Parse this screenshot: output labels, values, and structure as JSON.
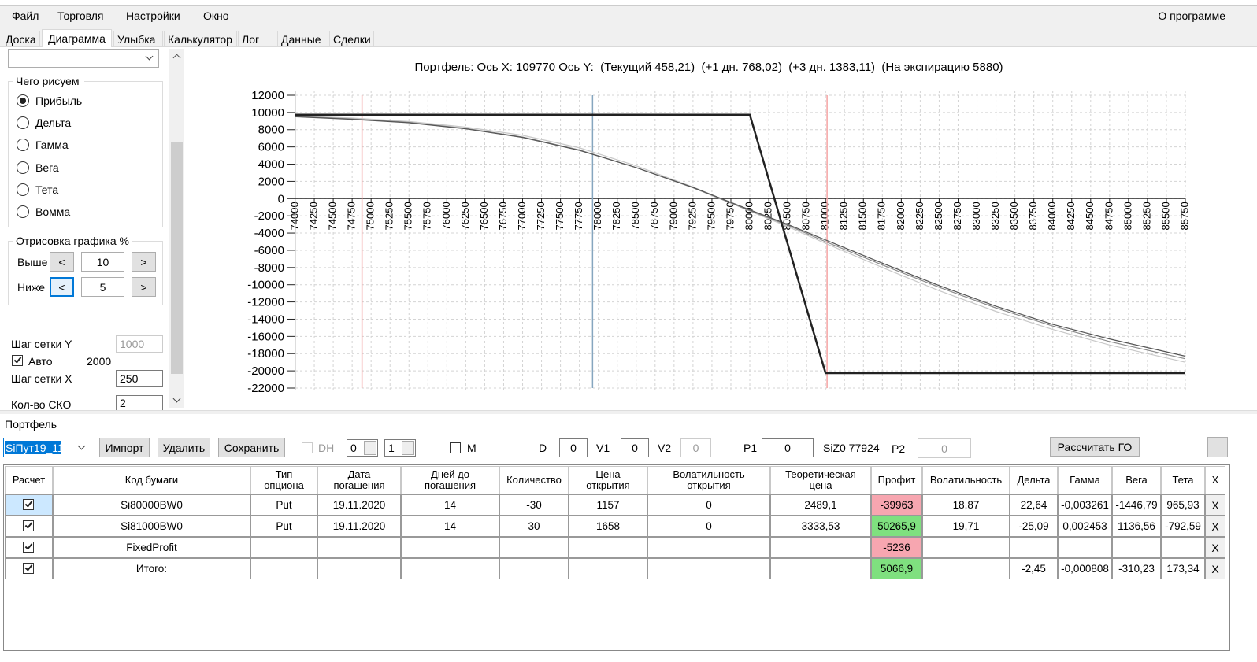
{
  "menu": {
    "items": [
      "Файл",
      "Торговля",
      "Настройки",
      "Окно"
    ],
    "about": "О программе"
  },
  "tabs": {
    "items": [
      "Доска",
      "Диаграмма",
      "Улыбка",
      "Калькулятор",
      "Лог",
      "Данные",
      "Сделки"
    ],
    "active": 1
  },
  "settings": {
    "draw_group": "Чего рисуем",
    "draw_options": [
      "Прибыль",
      "Дельта",
      "Гамма",
      "Вега",
      "Тета",
      "Вомма"
    ],
    "draw_selected": 0,
    "range_group": "Отрисовка графика %",
    "above_label": "Выше",
    "above": 10,
    "below_label": "Ниже",
    "below": 5,
    "dec": "<",
    "inc": ">",
    "grid_y_label": "Шаг сетки Y",
    "grid_y": 1000,
    "auto_label": "Авто",
    "auto_checked": true,
    "auto_value": 2000,
    "grid_x_label": "Шаг сетки X",
    "grid_x": 250,
    "sd_label": "Кол-во СКО",
    "sd": 2
  },
  "chart_data": {
    "type": "line",
    "title": "Портфель: Ось X: 109770 Ось Y:  (Текущий 458,21)  (+1 дн. 768,02)  (+3 дн. 1383,11)  (На экспирацию 5880)",
    "x": [
      74000,
      74750,
      75500,
      76250,
      77000,
      77750,
      78500,
      79250,
      80000,
      80500,
      81000,
      81750,
      82500,
      83250,
      84000,
      84750,
      85750
    ],
    "series": [
      {
        "color": "#c8c8c8",
        "width": 1.2,
        "values": [
          9600,
          9350,
          8950,
          8300,
          7350,
          5900,
          3800,
          1350,
          -1450,
          -3250,
          -5200,
          -8000,
          -10700,
          -13100,
          -15200,
          -17000,
          -19000
        ]
      },
      {
        "color": "#8a8a8a",
        "width": 1.2,
        "values": [
          9550,
          9250,
          8850,
          8150,
          7150,
          5650,
          3600,
          1250,
          -1400,
          -3100,
          -5000,
          -7700,
          -10300,
          -12700,
          -14800,
          -16600,
          -18600
        ]
      },
      {
        "color": "#555555",
        "width": 1.2,
        "values": [
          9500,
          9200,
          8800,
          8100,
          7100,
          5600,
          3600,
          1300,
          -1300,
          -3000,
          -4800,
          -7500,
          -10100,
          -12500,
          -14600,
          -16300,
          -18300
        ]
      },
      {
        "color": "#222222",
        "width": 2.5,
        "values": [
          9734,
          9734,
          9734,
          9734,
          9734,
          9734,
          9734,
          9734,
          9734,
          -5266,
          -20266,
          -20266,
          -20266,
          -20266,
          -20266,
          -20266,
          -20266
        ]
      }
    ],
    "vlines": [
      {
        "value": 74880,
        "color": "#f4a3a3"
      },
      {
        "value": 77924,
        "color": "#86a6bf"
      },
      {
        "value": 81020,
        "color": "#f4a3a3"
      }
    ],
    "xlim": [
      74000,
      85750
    ],
    "xticks": [
      74000,
      74250,
      74500,
      74750,
      75000,
      75250,
      75500,
      75750,
      76000,
      76250,
      76500,
      76750,
      77000,
      77250,
      77500,
      77750,
      78000,
      78250,
      78500,
      78750,
      79000,
      79250,
      79500,
      79750,
      80000,
      80250,
      80500,
      80750,
      81000,
      81250,
      81500,
      81750,
      82000,
      82250,
      82500,
      82750,
      83000,
      83250,
      83500,
      83750,
      84000,
      84250,
      84500,
      84750,
      85000,
      85250,
      85500,
      85750
    ],
    "ylim": [
      -22000,
      12000
    ],
    "yticks": [
      -22000,
      -20000,
      -18000,
      -16000,
      -14000,
      -12000,
      -10000,
      -8000,
      -6000,
      -4000,
      -2000,
      0,
      2000,
      4000,
      6000,
      8000,
      10000,
      12000
    ],
    "grid": true
  },
  "portfolio": {
    "title": "Портфель",
    "name": "SiПут19_11",
    "buttons": [
      "Импорт",
      "Удалить",
      "Сохранить"
    ],
    "dh_label": "DH",
    "dh_checked": false,
    "spin1": 0,
    "spin2": 1,
    "m_label": "M",
    "m_checked": false,
    "d_label": "D",
    "d": 0,
    "v1_label": "V1",
    "v1": 0,
    "v2_label": "V2",
    "v2": 0,
    "p1_label": "P1",
    "p1": 0,
    "price": "SiZ0 77924",
    "p2_label": "P2",
    "p2": 0,
    "calc_button": "Рассчитать ГО",
    "minimize": "_"
  },
  "table": {
    "columns": [
      "Расчет",
      "Код бумаги",
      "Тип опциона",
      "Дата погашения",
      "Дней до погашения",
      "Количество",
      "Цена открытия",
      "Волатильность открытия",
      "Теоретическая цена",
      "Профит",
      "Волатильность",
      "Дельта",
      "Гамма",
      "Вега",
      "Тета",
      "X"
    ],
    "rows": [
      {
        "calc": true,
        "cells": [
          "Si80000BW0",
          "Put",
          "19.11.2020",
          "14",
          "-30",
          "1157",
          "0",
          "2489,1",
          "-39963",
          "18,87",
          "22,64",
          "-0,003261",
          "-1446,79",
          "965,93"
        ]
      },
      {
        "calc": true,
        "cells": [
          "Si81000BW0",
          "Put",
          "19.11.2020",
          "14",
          "30",
          "1658",
          "0",
          "3333,53",
          "50265,9",
          "19,71",
          "-25,09",
          "0,002453",
          "1136,56",
          "-792,59"
        ]
      },
      {
        "calc": true,
        "cells": [
          "FixedProfit",
          null,
          null,
          null,
          null,
          null,
          null,
          null,
          "-5236",
          null,
          null,
          null,
          null,
          null
        ]
      },
      {
        "calc": true,
        "cells": [
          "Итого:",
          null,
          null,
          null,
          null,
          null,
          null,
          null,
          "5066,9",
          null,
          "-2,45",
          "-0,000808",
          "-310,23",
          "173,34"
        ]
      }
    ],
    "delete": "X"
  }
}
